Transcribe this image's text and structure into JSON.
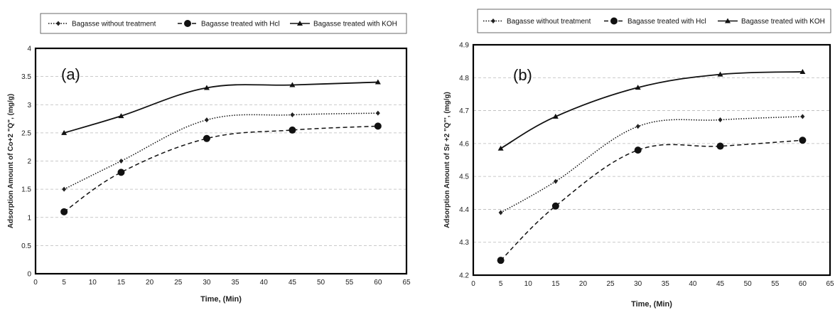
{
  "chart_data": [
    {
      "type": "line",
      "panel_label": "(a)",
      "xlabel": "Time, (Min)",
      "ylabel": "Adsorption Amount of Co+2 \"Q\", (mg/g)",
      "xlim": [
        0,
        65
      ],
      "ylim": [
        0,
        4
      ],
      "xticks": [
        "0",
        "5",
        "10",
        "15",
        "20",
        "25",
        "30",
        "35",
        "40",
        "45",
        "50",
        "55",
        "60",
        "65"
      ],
      "yticks": [
        "0",
        "0.5",
        "1",
        "1.5",
        "2",
        "2.5",
        "3",
        "3.5",
        "4"
      ],
      "grid": "horizontal dashed",
      "legend_position": "top",
      "x": [
        5,
        15,
        30,
        45,
        60
      ],
      "series": [
        {
          "name": "Bagasse without treatment",
          "marker": "diamond",
          "line": "dotted",
          "values": [
            1.5,
            2.0,
            2.73,
            2.82,
            2.85
          ]
        },
        {
          "name": "Bagasse treated with Hcl",
          "marker": "circle",
          "line": "dashed",
          "values": [
            1.1,
            1.8,
            2.4,
            2.55,
            2.62
          ]
        },
        {
          "name": "Bagasse treated with KOH",
          "marker": "triangle",
          "line": "solid",
          "values": [
            2.5,
            2.8,
            3.3,
            3.35,
            3.4
          ]
        }
      ]
    },
    {
      "type": "line",
      "panel_label": "(b)",
      "xlabel": "Time, (Min)",
      "ylabel": "Adsorption Amount of Sr +2 \"Q\"', (mg/g)",
      "xlim": [
        0,
        65
      ],
      "ylim": [
        4.2,
        4.9
      ],
      "xticks": [
        "0",
        "5",
        "10",
        "15",
        "20",
        "25",
        "30",
        "35",
        "40",
        "45",
        "50",
        "55",
        "60",
        "65"
      ],
      "yticks": [
        "4.2",
        "4.3",
        "4.4",
        "4.5",
        "4.6",
        "4.7",
        "4.8",
        "4.9"
      ],
      "grid": "horizontal dashed",
      "legend_position": "top",
      "x": [
        5,
        15,
        30,
        45,
        60
      ],
      "series": [
        {
          "name": "Bagasse without treatment",
          "marker": "diamond",
          "line": "dotted",
          "values": [
            4.39,
            4.485,
            4.652,
            4.672,
            4.682
          ]
        },
        {
          "name": "Bagasse treated with Hcl",
          "marker": "circle",
          "line": "dashed",
          "values": [
            4.245,
            4.41,
            4.58,
            4.592,
            4.61
          ]
        },
        {
          "name": "Bagasse treated with KOH",
          "marker": "triangle",
          "line": "solid",
          "values": [
            4.585,
            4.682,
            4.77,
            4.81,
            4.818
          ]
        }
      ]
    }
  ]
}
